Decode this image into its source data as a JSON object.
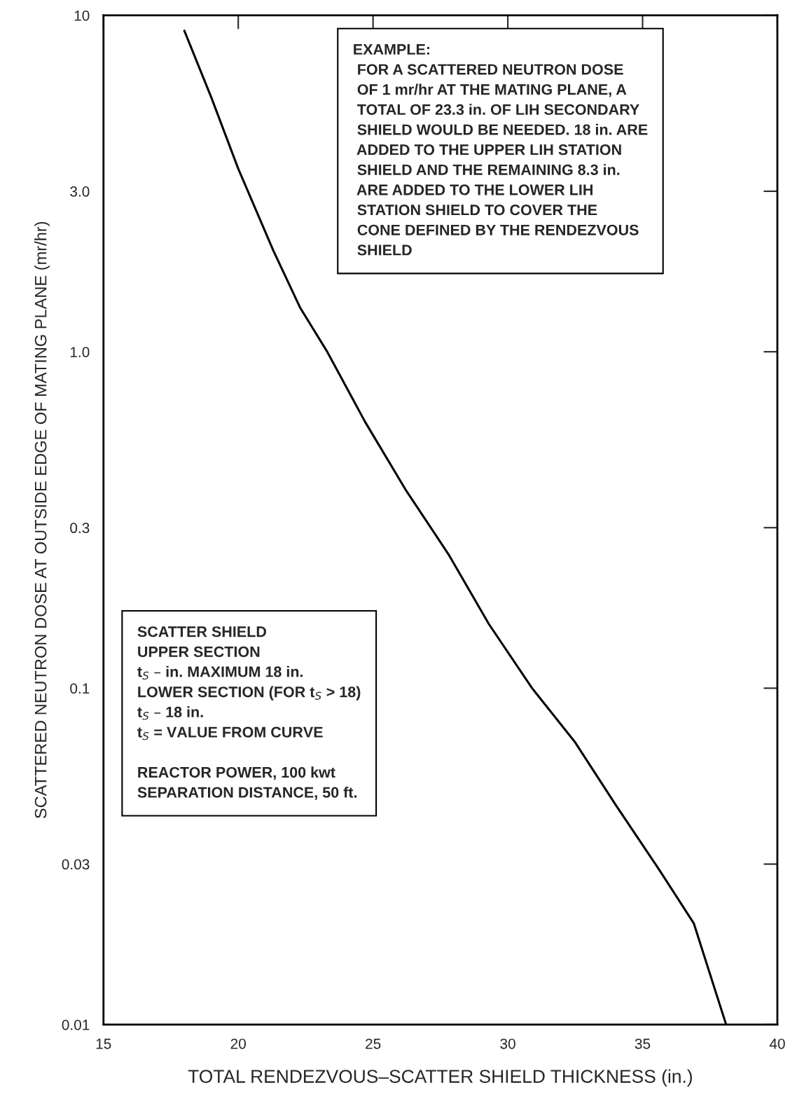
{
  "chart_data": {
    "type": "line",
    "xlabel": "TOTAL RENDEZVOUS–SCATTER SHIELD THICKNESS (in.)",
    "ylabel": "SCATTERED NEUTRON DOSE AT OUTSIDE EDGE OF MATING PLANE (mr/hr)",
    "log": "y",
    "grid": false,
    "marker": "none",
    "line_style": "solid",
    "xlim": [
      15,
      40
    ],
    "xticks": [
      15,
      20,
      25,
      30,
      35,
      40
    ],
    "ylim": [
      0.01,
      10
    ],
    "yticks": [
      0.01,
      0.03,
      0.1,
      0.3,
      {
        "value": 1,
        "label": "1.0"
      },
      {
        "value": 3,
        "label": "3.0"
      },
      10
    ],
    "series": [
      {
        "color": "#000000",
        "x": [
          18.0,
          19.0,
          20.0,
          21.3,
          22.3,
          23.3,
          24.7,
          26.2,
          27.8,
          29.3,
          30.9,
          32.5,
          34.0,
          35.6,
          36.9,
          38.1
        ],
        "values": [
          9.0,
          5.7,
          3.5,
          2.0,
          1.35,
          1.0,
          0.62,
          0.39,
          0.25,
          0.155,
          0.1,
          0.069,
          0.045,
          0.029,
          0.02,
          0.01
        ]
      }
    ],
    "annotations": [
      "EXAMPLE:\n FOR A SCATTERED NEUTRON DOSE\n OF 1 mr/hr AT THE MATING PLANE, A\n TOTAL OF 23.3 in. OF LIH SECONDARY\n SHIELD WOULD BE NEEDED. 18 in. ARE\n ADDED TO THE UPPER LIH STATION\n SHIELD AND THE REMAINING 8.3 in.\n ARE ADDED TO THE LOWER LIH\n STATION SHIELD TO COVER THE\n CONE DEFINED BY THE RENDEZVOUS\n SHIELD",
      "SCATTER SHIELD\nUPPER SECTION\nt$_{S}$ – in. MAXIMUM 18 in.\nLOWER SECTION (FOR t$_{S}$ > 18)\nt$_{S}$ – 18 in.\nt$_{S}$ = VALUE FROM CURVE\n\nREACTOR POWER, 100 kwt\nSEPARATION DISTANCE, 50 ft."
    ]
  }
}
